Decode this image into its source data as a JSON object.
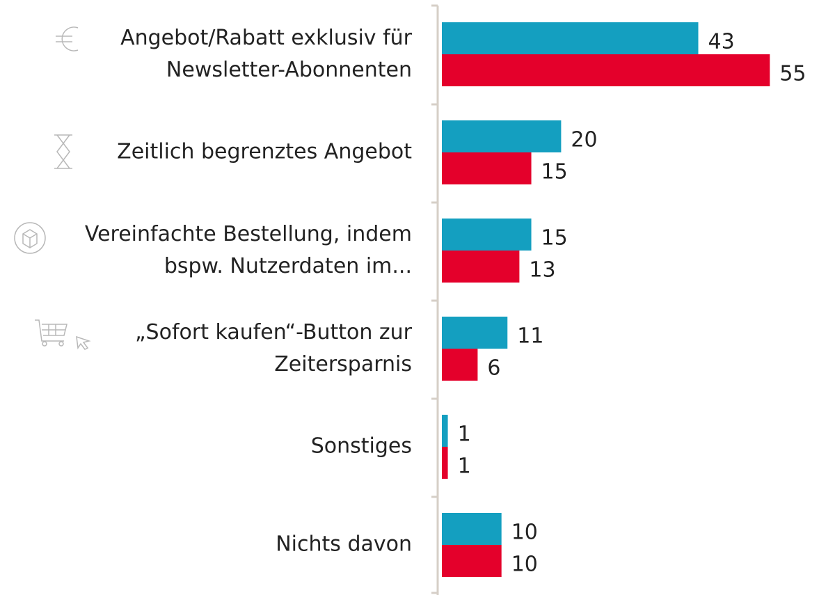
{
  "chart_data": {
    "type": "bar",
    "orientation": "horizontal",
    "categories": [
      "Angebot/Rabatt exklusiv für\nNewsletter-Abonnenten",
      "Zeitlich begrenztes Angebot",
      "Vereinfachte Bestellung, indem\nbspw. Nutzerdaten im...",
      "„Sofort kaufen“-Button zur\nZeitersparnis",
      "Sonstiges",
      "Nichts davon"
    ],
    "series": [
      {
        "color": "#149fc0",
        "values": [
          43,
          20,
          15,
          11,
          1,
          10
        ]
      },
      {
        "color": "#e4002b",
        "values": [
          55,
          15,
          13,
          6,
          1,
          10
        ]
      }
    ],
    "xlim": [
      0,
      60
    ]
  }
}
